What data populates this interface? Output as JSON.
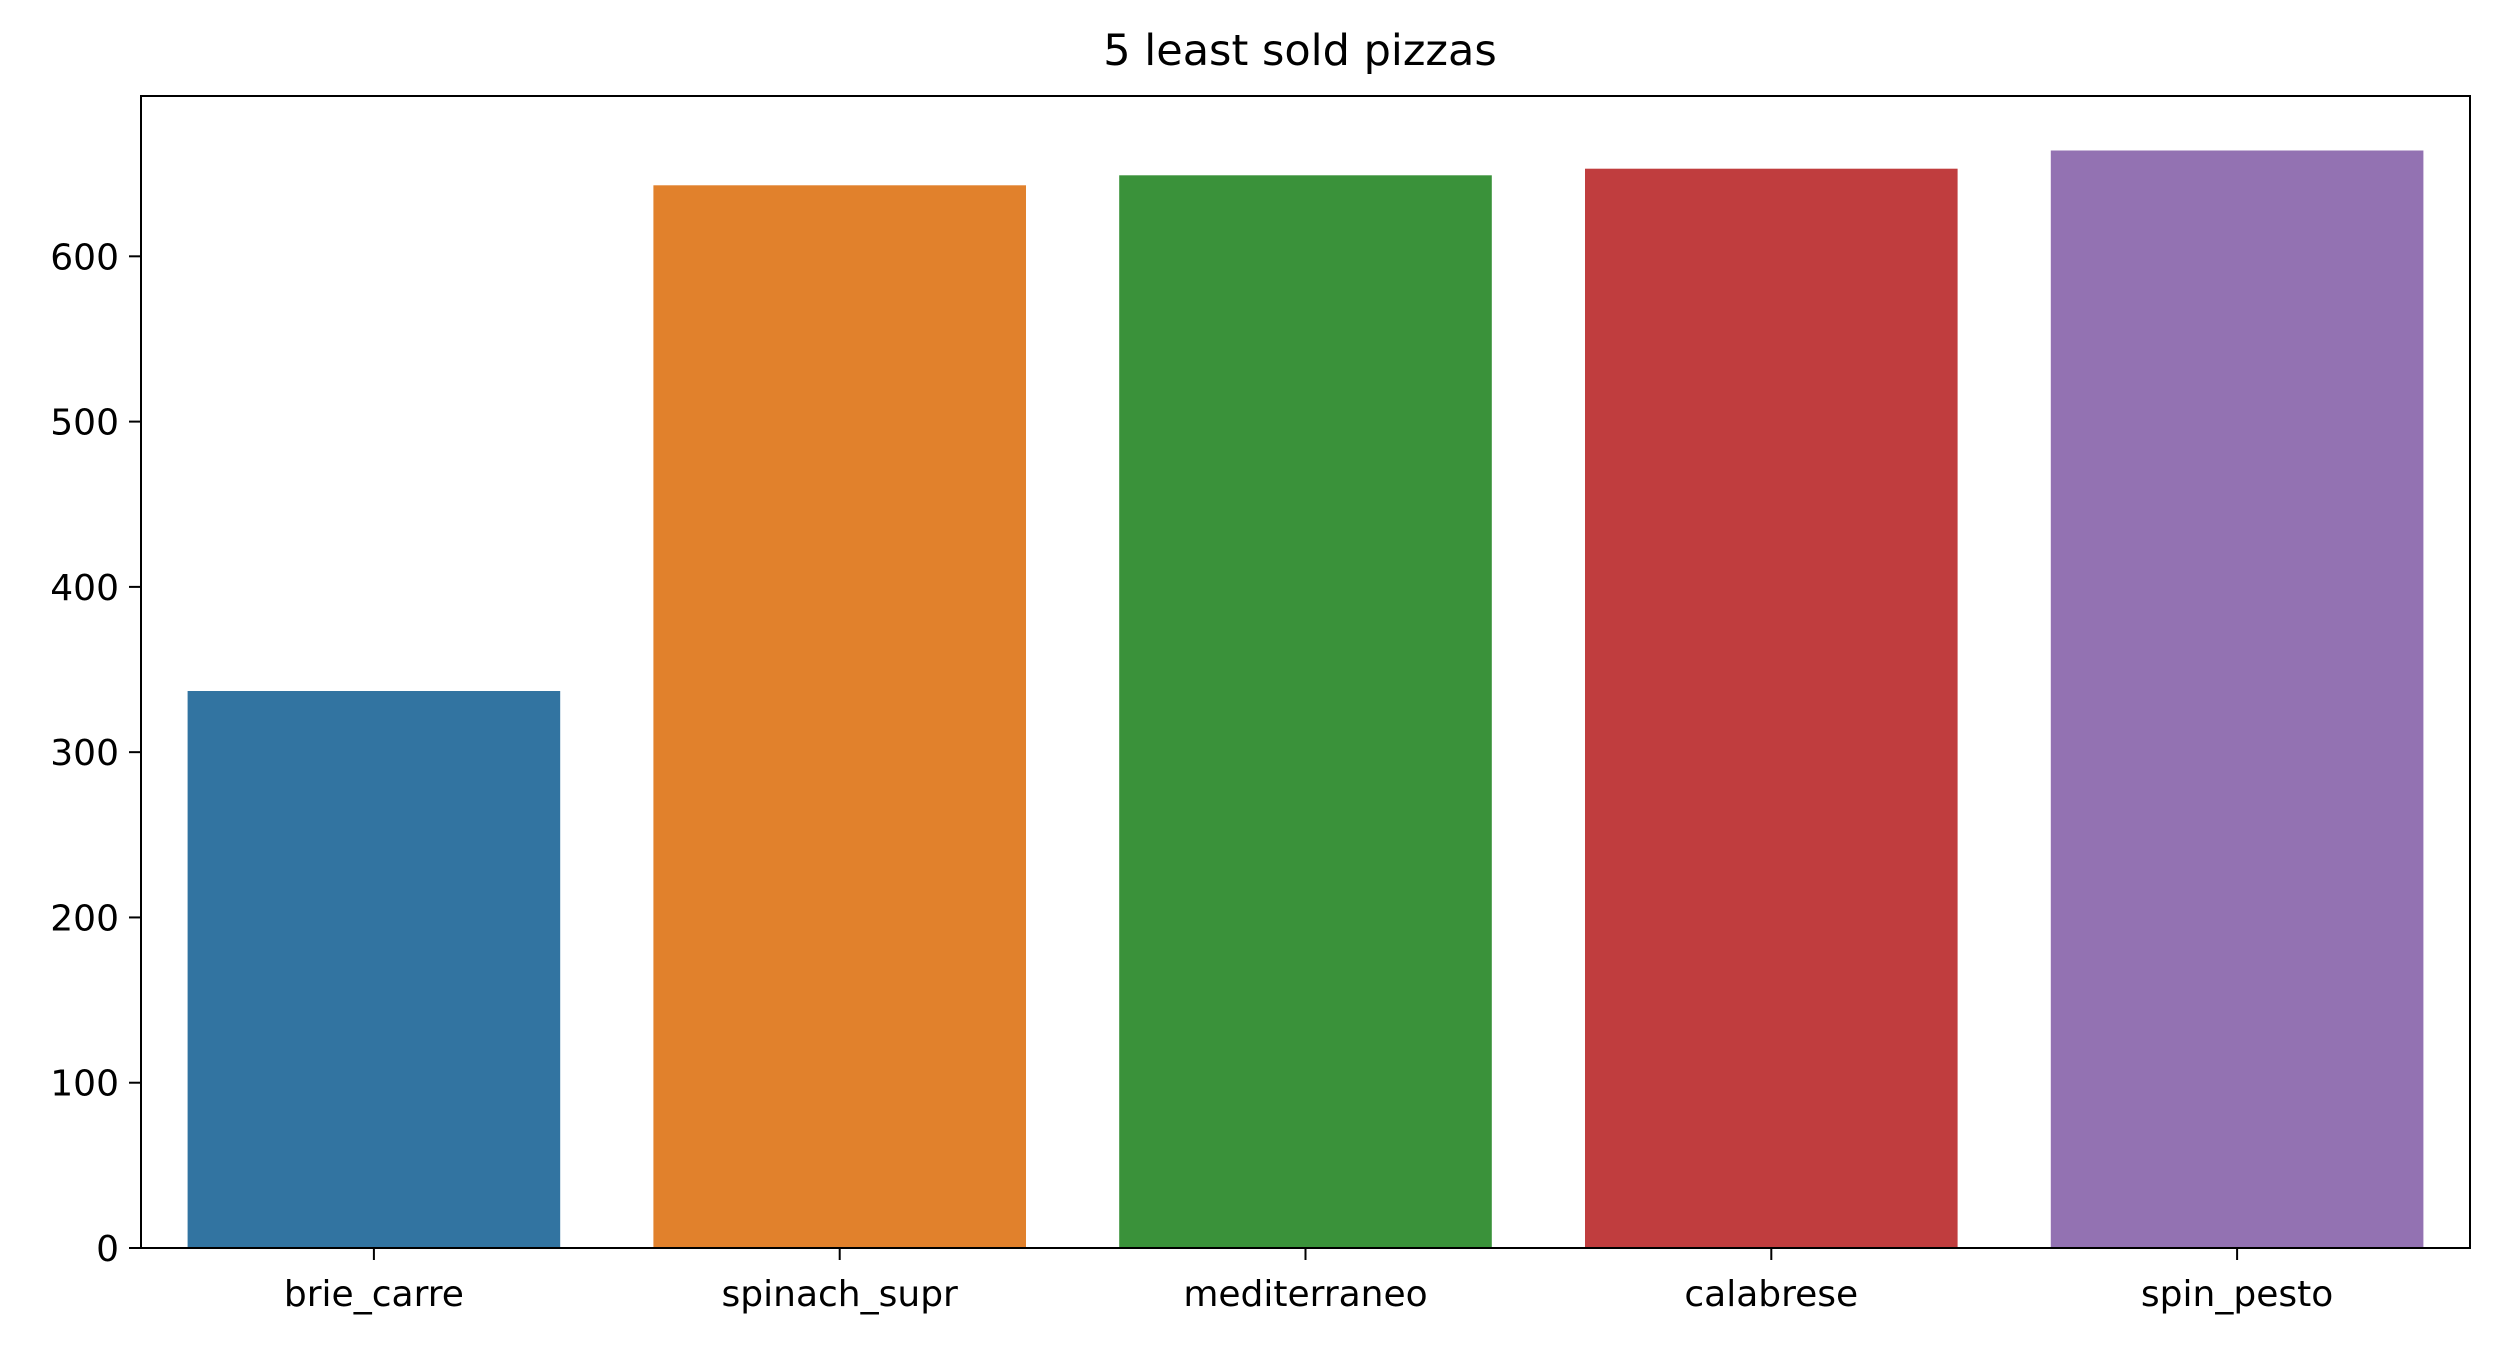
{
  "chart_data": {
    "type": "bar",
    "title": "5 least sold pizzas",
    "xlabel": "",
    "ylabel": "",
    "categories": [
      "brie_carre",
      "spinach_supr",
      "mediterraneo",
      "calabrese",
      "spin_pesto"
    ],
    "values": [
      337,
      643,
      649,
      653,
      664
    ],
    "colors": [
      "#3274a1",
      "#e1812c",
      "#3a923a",
      "#c03d3e",
      "#9372b2"
    ],
    "ylim": [
      0,
      697
    ],
    "yticks": [
      0,
      100,
      200,
      300,
      400,
      500,
      600
    ],
    "grid": false,
    "legend": "none"
  }
}
